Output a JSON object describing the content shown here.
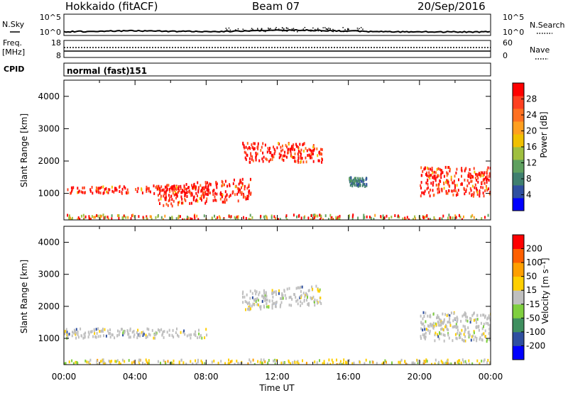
{
  "header": {
    "title": "Hokkaido (fitACF)",
    "beam": "Beam 07",
    "date": "20/Sep/2016"
  },
  "noise_panel": {
    "left_label": "N.Sky",
    "right_label": "N.Search",
    "left_ticks": [
      "10^5",
      "10^0"
    ],
    "right_ticks": [
      "10^5",
      "10^0"
    ]
  },
  "freq_panel": {
    "left_label_1": "Freq.",
    "left_label_2": "[MHz]",
    "left_ticks": [
      "18",
      "8"
    ],
    "right_label": "Nave",
    "right_ticks": [
      "60",
      "0"
    ]
  },
  "cpid_panel": {
    "label": "CPID",
    "mode": "normal (fast)",
    "id": "151"
  },
  "chart_data": [
    {
      "type": "heatmap",
      "panel": "power",
      "ylabel": "Slant Range [km]",
      "y_ticks": [
        "1000",
        "2000",
        "3000",
        "4000"
      ],
      "ylim": [
        180,
        4500
      ],
      "colorbar_label": "Power [dB]",
      "colorbar_ticks": [
        "4",
        "8",
        "12",
        "16",
        "20",
        "24",
        "28"
      ],
      "colorscale": [
        "#0000ff",
        "#2f4fa0",
        "#3f7f6f",
        "#5fa05f",
        "#9fbf3f",
        "#f0c000",
        "#ff9f1f",
        "#ff7020",
        "#ff4020",
        "#ff0000"
      ],
      "approx_echo_bands": [
        {
          "x": [
            "00:00",
            "08:00"
          ],
          "slant_range_km": [
            1000,
            1300
          ],
          "power_db": 28
        },
        {
          "x": [
            "05:00",
            "10:30"
          ],
          "slant_range_km": [
            600,
            1500
          ],
          "power_db": 28
        },
        {
          "x": [
            "10:00",
            "14:30"
          ],
          "slant_range_km": [
            1900,
            2700
          ],
          "power_db": 28
        },
        {
          "x": [
            "16:00",
            "17:00"
          ],
          "slant_range_km": [
            1200,
            1600
          ],
          "power_db": 12
        },
        {
          "x": [
            "20:00",
            "24:00"
          ],
          "slant_range_km": [
            800,
            2000
          ],
          "power_db": 28
        },
        {
          "x": [
            "00:00",
            "24:00"
          ],
          "slant_range_km": [
            200,
            400
          ],
          "power_db": 20
        }
      ]
    },
    {
      "type": "heatmap",
      "panel": "velocity",
      "ylabel": "Slant Range [km]",
      "y_ticks": [
        "1000",
        "2000",
        "3000",
        "4000"
      ],
      "ylim": [
        180,
        4500
      ],
      "xlabel": "Time UT",
      "x_ticks": [
        "00:00",
        "04:00",
        "08:00",
        "12:00",
        "16:00",
        "20:00",
        "00:00"
      ],
      "colorbar_label": "Velocity [m s⁻¹]",
      "colorbar_ticks": [
        "200",
        "100",
        "50",
        "15",
        "-15",
        "-50",
        "-100",
        "-200"
      ],
      "colorscale": [
        "#0000ff",
        "#2f4fa0",
        "#3f8f5f",
        "#7fcf3f",
        "#bfbfbf",
        "#ffcf00",
        "#ff9f00",
        "#ff5f00",
        "#ff0000"
      ],
      "approx_echo_bands": [
        {
          "x": [
            "00:00",
            "08:00"
          ],
          "slant_range_km": [
            1000,
            1400
          ],
          "velocity_ms": 0
        },
        {
          "x": [
            "10:00",
            "14:30"
          ],
          "slant_range_km": [
            1900,
            2700
          ],
          "velocity_ms": 0
        },
        {
          "x": [
            "20:00",
            "24:00"
          ],
          "slant_range_km": [
            800,
            2000
          ],
          "velocity_ms": 0
        },
        {
          "x": [
            "00:00",
            "24:00"
          ],
          "slant_range_km": [
            200,
            400
          ],
          "velocity_ms": -50
        }
      ]
    }
  ]
}
